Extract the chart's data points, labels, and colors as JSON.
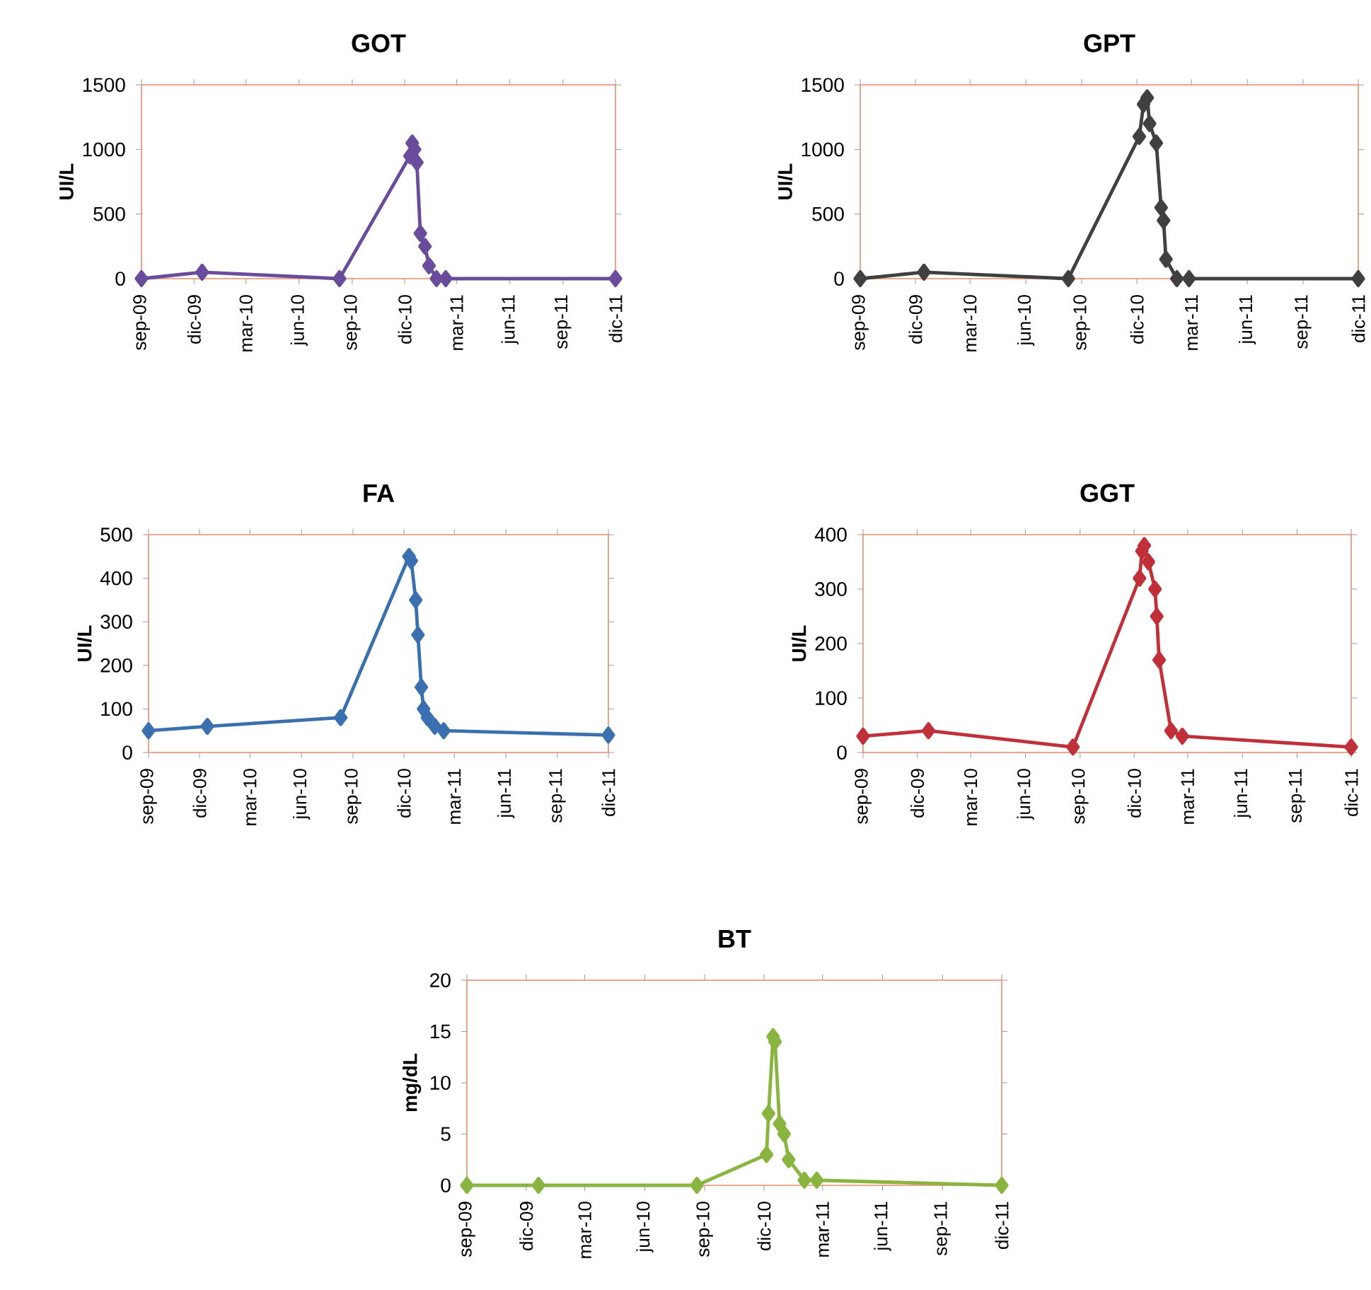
{
  "chart_data": [
    {
      "type": "line",
      "title": "GOT",
      "ylabel": "UI/L",
      "marker": "diamond",
      "x": [
        "2009-09-01",
        "2009-12-15",
        "2010-08-10",
        "2010-12-10",
        "2010-12-14",
        "2010-12-18",
        "2010-12-22",
        "2010-12-28",
        "2011-01-05",
        "2011-01-12",
        "2011-01-25",
        "2011-02-10",
        "2011-12-01"
      ],
      "series": [
        {
          "color": "#6a4c9c",
          "values": [
            0,
            50,
            0,
            950,
            1050,
            1000,
            900,
            350,
            250,
            100,
            0,
            0,
            0
          ]
        }
      ],
      "xlim": [
        "2009-09-01",
        "2011-12-01"
      ],
      "xticks": [
        {
          "value": "2009-09-01",
          "label": "sep-09"
        },
        {
          "value": "2009-12-01",
          "label": "dic-09"
        },
        {
          "value": "2010-03-01",
          "label": "mar-10"
        },
        {
          "value": "2010-06-01",
          "label": "jun-10"
        },
        {
          "value": "2010-09-01",
          "label": "sep-10"
        },
        {
          "value": "2010-12-01",
          "label": "dic-10"
        },
        {
          "value": "2011-03-01",
          "label": "mar-11"
        },
        {
          "value": "2011-06-01",
          "label": "jun-11"
        },
        {
          "value": "2011-09-01",
          "label": "sep-11"
        },
        {
          "value": "2011-12-01",
          "label": "dic-11"
        }
      ],
      "ylim": [
        0,
        1500
      ],
      "yticks": [
        0,
        500,
        1000,
        1500
      ]
    },
    {
      "type": "line",
      "title": "GPT",
      "ylabel": "UI/L",
      "marker": "diamond",
      "x": [
        "2009-09-01",
        "2009-12-15",
        "2010-08-10",
        "2010-12-05",
        "2010-12-12",
        "2010-12-18",
        "2010-12-22",
        "2011-01-02",
        "2011-01-10",
        "2011-01-14",
        "2011-01-18",
        "2011-02-05",
        "2011-02-25",
        "2011-12-01"
      ],
      "series": [
        {
          "color": "#404040",
          "values": [
            0,
            50,
            0,
            1100,
            1350,
            1400,
            1200,
            1050,
            550,
            450,
            150,
            0,
            0,
            0
          ]
        }
      ],
      "xlim": [
        "2009-09-01",
        "2011-12-01"
      ],
      "xticks": [
        {
          "value": "2009-09-01",
          "label": "sep-09"
        },
        {
          "value": "2009-12-01",
          "label": "dic-09"
        },
        {
          "value": "2010-03-01",
          "label": "mar-10"
        },
        {
          "value": "2010-06-01",
          "label": "jun-10"
        },
        {
          "value": "2010-09-01",
          "label": "sep-10"
        },
        {
          "value": "2010-12-01",
          "label": "dic-10"
        },
        {
          "value": "2011-03-01",
          "label": "mar-11"
        },
        {
          "value": "2011-06-01",
          "label": "jun-11"
        },
        {
          "value": "2011-09-01",
          "label": "sep-11"
        },
        {
          "value": "2011-12-01",
          "label": "dic-11"
        }
      ],
      "ylim": [
        0,
        1500
      ],
      "yticks": [
        0,
        500,
        1000,
        1500
      ]
    },
    {
      "type": "line",
      "title": "FA",
      "ylabel": "UI/L",
      "marker": "diamond",
      "x": [
        "2009-09-01",
        "2009-12-15",
        "2010-08-10",
        "2010-12-10",
        "2010-12-14",
        "2010-12-22",
        "2010-12-26",
        "2011-01-01",
        "2011-01-05",
        "2011-01-12",
        "2011-01-25",
        "2011-02-10",
        "2011-12-01"
      ],
      "series": [
        {
          "color": "#3a6fb0",
          "values": [
            50,
            60,
            80,
            450,
            440,
            350,
            270,
            150,
            100,
            80,
            60,
            50,
            40
          ]
        }
      ],
      "xlim": [
        "2009-09-01",
        "2011-12-01"
      ],
      "xticks": [
        {
          "value": "2009-09-01",
          "label": "sep-09"
        },
        {
          "value": "2009-12-01",
          "label": "dic-09"
        },
        {
          "value": "2010-03-01",
          "label": "mar-10"
        },
        {
          "value": "2010-06-01",
          "label": "jun-10"
        },
        {
          "value": "2010-09-01",
          "label": "sep-10"
        },
        {
          "value": "2010-12-01",
          "label": "dic-10"
        },
        {
          "value": "2011-03-01",
          "label": "mar-11"
        },
        {
          "value": "2011-06-01",
          "label": "jun-11"
        },
        {
          "value": "2011-09-01",
          "label": "sep-11"
        },
        {
          "value": "2011-12-01",
          "label": "dic-11"
        }
      ],
      "ylim": [
        0,
        500
      ],
      "yticks": [
        0,
        100,
        200,
        300,
        400,
        500
      ]
    },
    {
      "type": "line",
      "title": "GGT",
      "ylabel": "UI/L",
      "marker": "diamond",
      "x": [
        "2009-09-01",
        "2009-12-20",
        "2010-08-20",
        "2010-12-10",
        "2010-12-14",
        "2010-12-18",
        "2010-12-25",
        "2011-01-05",
        "2011-01-08",
        "2011-01-12",
        "2011-02-01",
        "2011-02-20",
        "2011-12-01"
      ],
      "series": [
        {
          "color": "#c0303a",
          "values": [
            30,
            40,
            10,
            320,
            370,
            380,
            350,
            300,
            250,
            170,
            40,
            30,
            10
          ]
        }
      ],
      "xlim": [
        "2009-09-01",
        "2011-12-01"
      ],
      "xticks": [
        {
          "value": "2009-09-01",
          "label": "sep-09"
        },
        {
          "value": "2009-12-01",
          "label": "dic-09"
        },
        {
          "value": "2010-03-01",
          "label": "mar-10"
        },
        {
          "value": "2010-06-01",
          "label": "jun-10"
        },
        {
          "value": "2010-09-01",
          "label": "sep-10"
        },
        {
          "value": "2010-12-01",
          "label": "dic-10"
        },
        {
          "value": "2011-03-01",
          "label": "mar-11"
        },
        {
          "value": "2011-06-01",
          "label": "jun-11"
        },
        {
          "value": "2011-09-01",
          "label": "sep-11"
        },
        {
          "value": "2011-12-01",
          "label": "dic-11"
        }
      ],
      "ylim": [
        0,
        400
      ],
      "yticks": [
        0,
        100,
        200,
        300,
        400
      ]
    },
    {
      "type": "line",
      "title": "BT",
      "ylabel": "mg/dL",
      "marker": "diamond",
      "x": [
        "2009-09-01",
        "2009-12-20",
        "2010-08-20",
        "2010-12-05",
        "2010-12-08",
        "2010-12-15",
        "2010-12-18",
        "2010-12-25",
        "2011-01-01",
        "2011-01-08",
        "2011-02-01",
        "2011-02-20",
        "2011-12-01"
      ],
      "series": [
        {
          "color": "#8ab440",
          "values": [
            0,
            0,
            0,
            3,
            7,
            14.5,
            14,
            6,
            5,
            2.5,
            0.5,
            0.5,
            0
          ]
        }
      ],
      "xlim": [
        "2009-09-01",
        "2011-12-01"
      ],
      "xticks": [
        {
          "value": "2009-09-01",
          "label": "sep-09"
        },
        {
          "value": "2009-12-01",
          "label": "dic-09"
        },
        {
          "value": "2010-03-01",
          "label": "mar-10"
        },
        {
          "value": "2010-06-01",
          "label": "jun-10"
        },
        {
          "value": "2010-09-01",
          "label": "sep-10"
        },
        {
          "value": "2010-12-01",
          "label": "dic-10"
        },
        {
          "value": "2011-03-01",
          "label": "mar-11"
        },
        {
          "value": "2011-06-01",
          "label": "jun-11"
        },
        {
          "value": "2011-09-01",
          "label": "sep-11"
        },
        {
          "value": "2011-12-01",
          "label": "dic-11"
        }
      ],
      "ylim": [
        0,
        20
      ],
      "yticks": [
        0,
        5,
        10,
        15,
        20
      ]
    }
  ]
}
